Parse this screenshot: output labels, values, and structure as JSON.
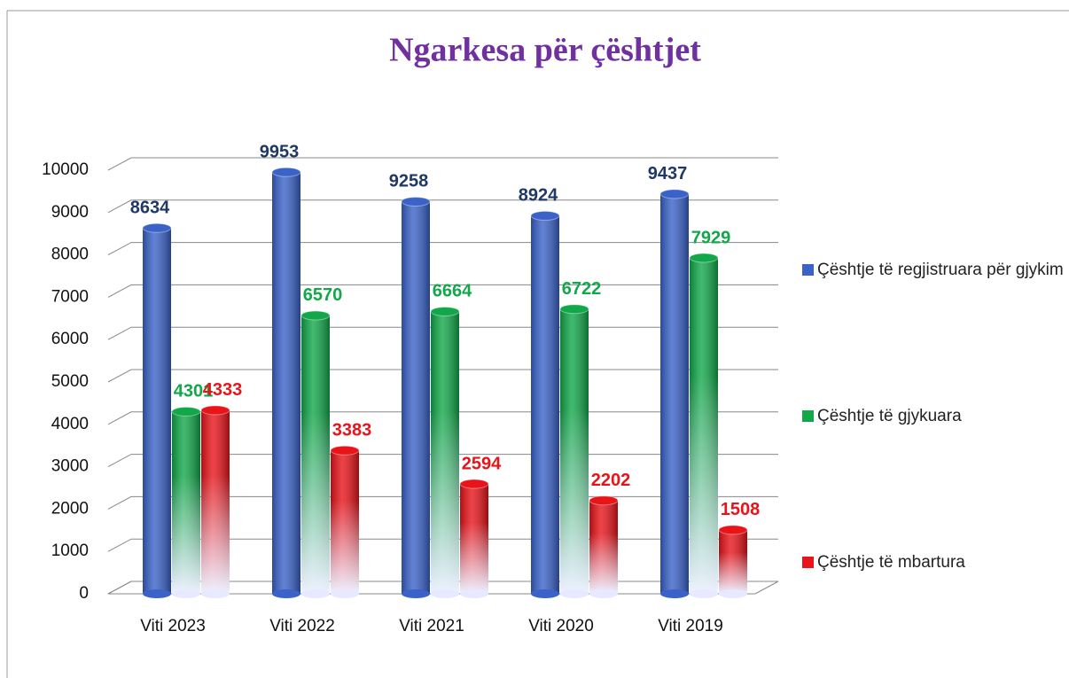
{
  "chart_data": {
    "type": "bar3d",
    "title": "Ngarkesa për çështjet",
    "categories": [
      "Viti 2023",
      "Viti 2022",
      "Viti 2021",
      "Viti 2020",
      "Viti 2019"
    ],
    "series": [
      {
        "name": "Çështje të regjistruara për gjykim",
        "color": "#3a62c9",
        "values": [
          8634,
          9953,
          9258,
          8924,
          9437
        ]
      },
      {
        "name": "Çështje të gjykuara",
        "color": "#12a84a",
        "values": [
          4301,
          6570,
          6664,
          6722,
          7929
        ]
      },
      {
        "name": "Çështje të mbartura",
        "color": "#e8141a",
        "values": [
          4333,
          3383,
          2594,
          2202,
          1508
        ]
      }
    ],
    "ylim": [
      0,
      10000
    ],
    "yticks": [
      0,
      1000,
      2000,
      3000,
      4000,
      5000,
      6000,
      7000,
      8000,
      9000,
      10000
    ],
    "grid": true,
    "legend": "right"
  }
}
